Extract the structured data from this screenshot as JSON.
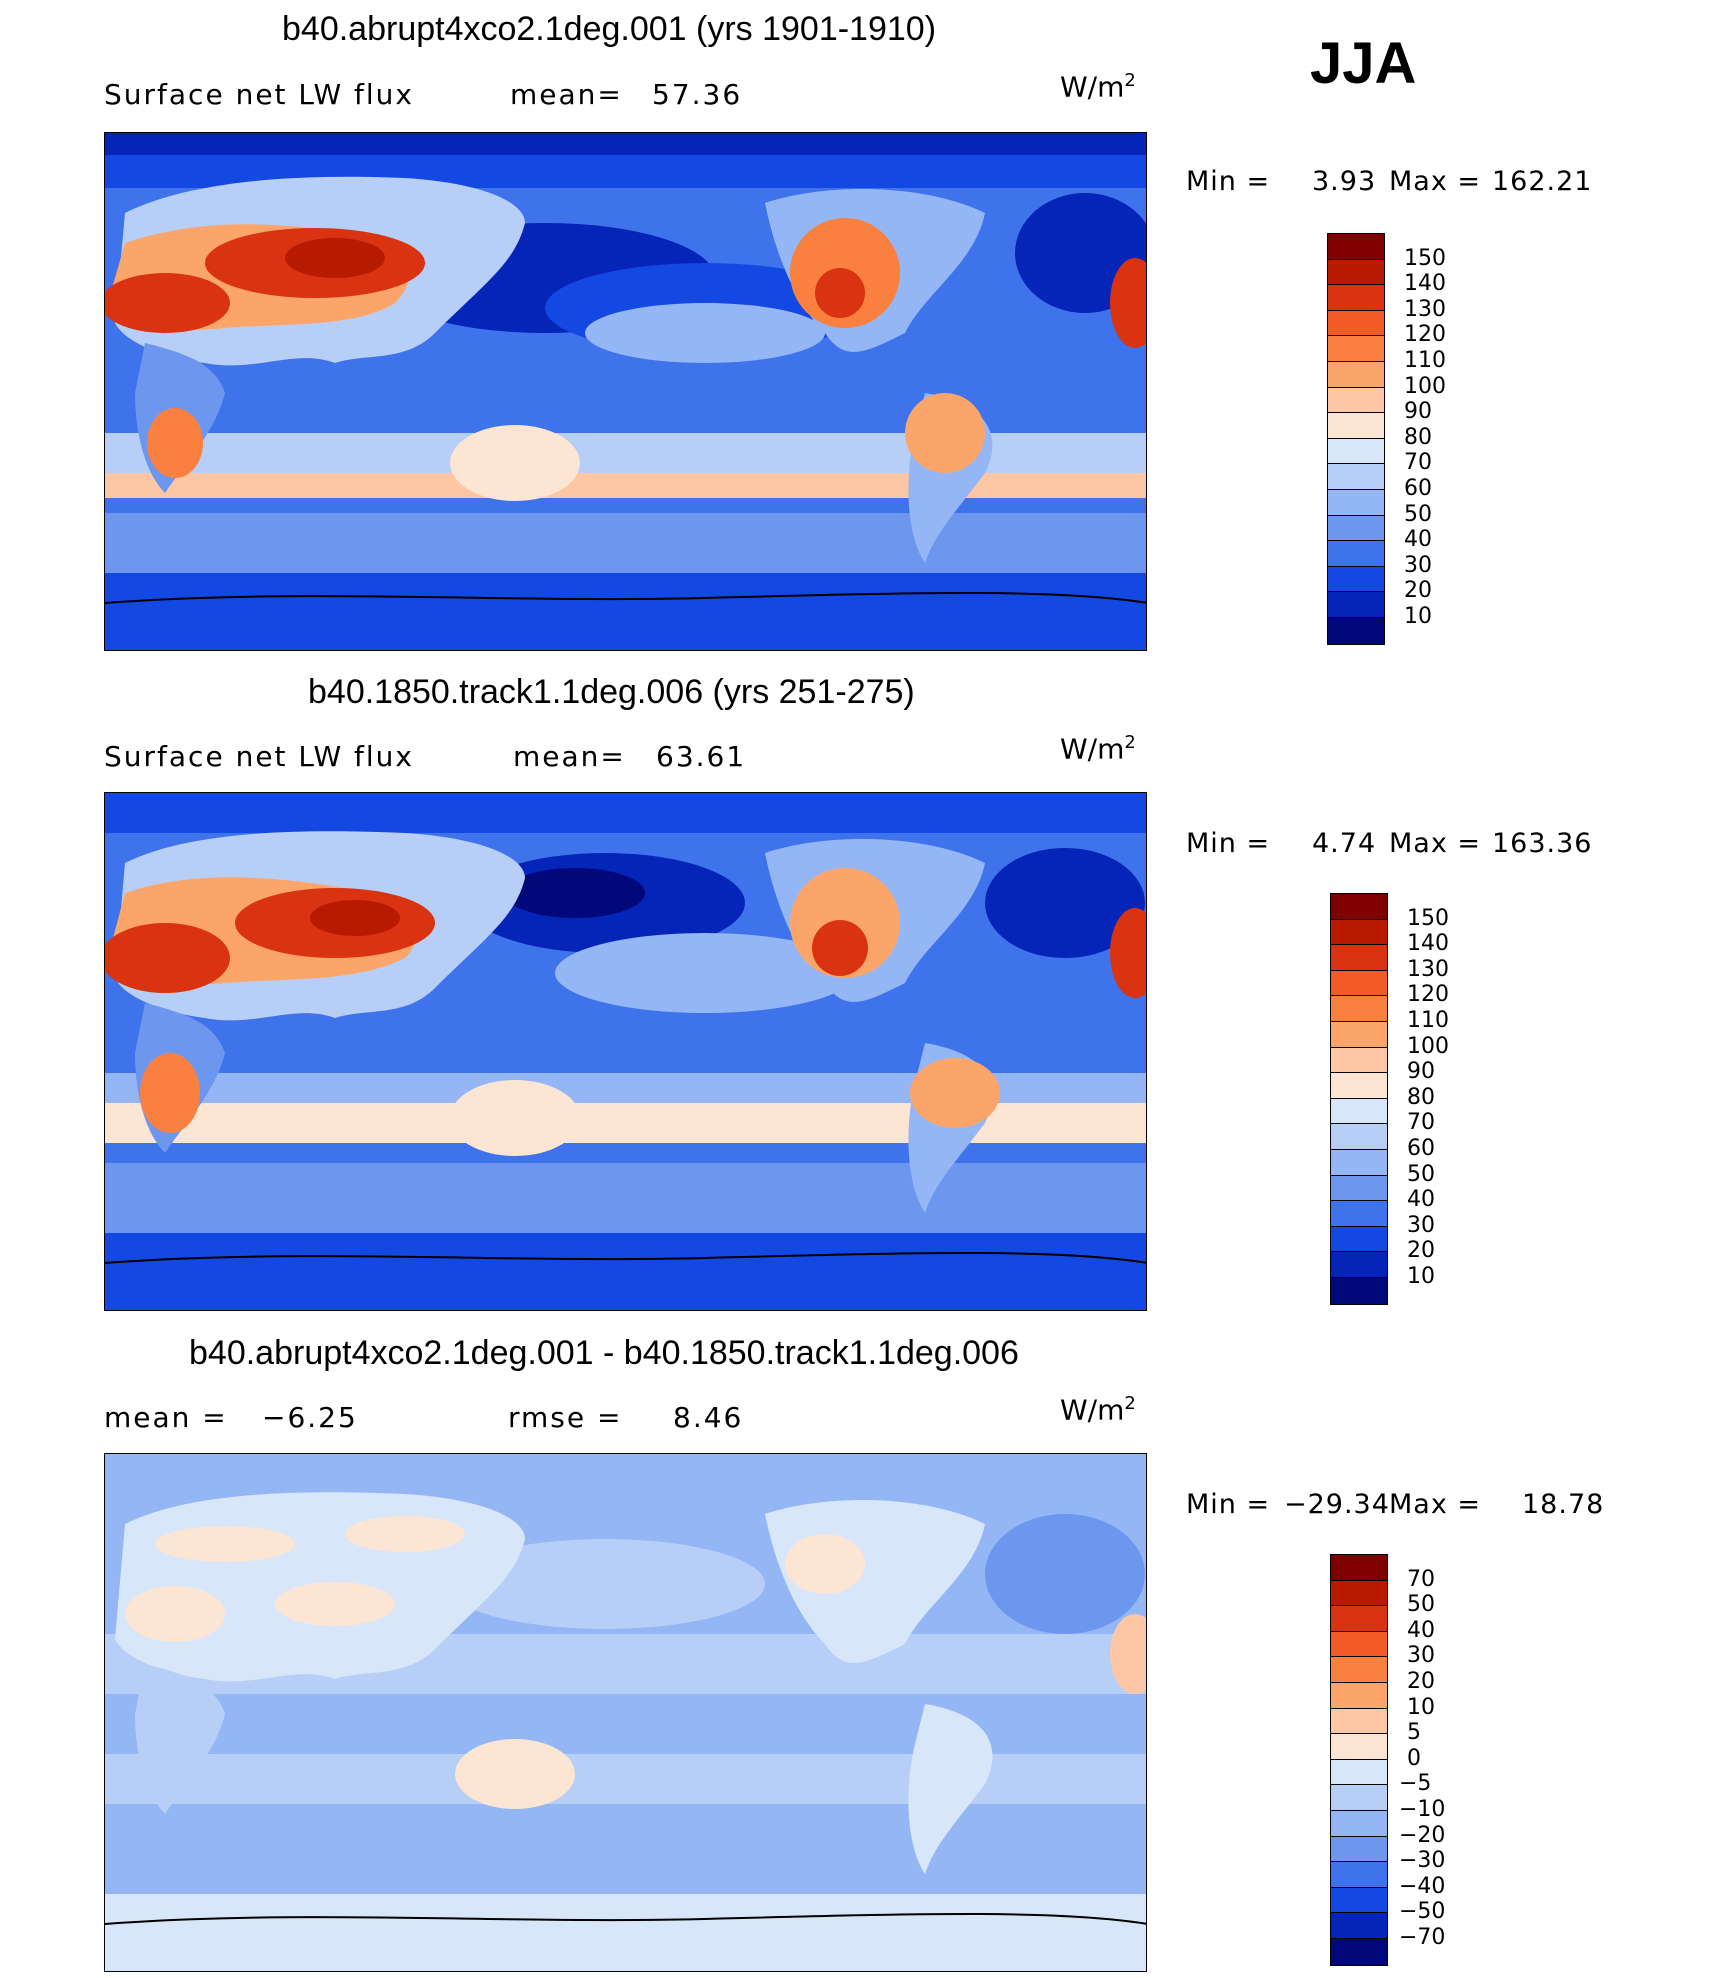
{
  "season": "JJA",
  "panels": [
    {
      "title": "b40.abrupt4xco2.1deg.001 (yrs 1901-1910)",
      "left_label": "Surface net LW flux",
      "stat_label": "mean=",
      "stat_value": "57.36",
      "units": "W/m",
      "units_sup": "2",
      "min_label": "Min =",
      "min_value": "3.93",
      "max_label": "Max =",
      "max_value": "162.21",
      "colorbar_labels": [
        "150",
        "140",
        "130",
        "120",
        "110",
        "100",
        "90",
        "80",
        "70",
        "60",
        "50",
        "40",
        "30",
        "20",
        "10"
      ],
      "colors": [
        "#800000",
        "#b81a00",
        "#d93312",
        "#f25a26",
        "#f9803f",
        "#fca56b",
        "#fdc6a4",
        "#fde5d3",
        "#d8e6fa",
        "#b7cff7",
        "#94b6f4",
        "#6d97ef",
        "#3f73ec",
        "#1448e2",
        "#0524b8",
        "#00087a"
      ]
    },
    {
      "title": "b40.1850.track1.1deg.006 (yrs 251-275)",
      "left_label": "Surface net LW flux",
      "stat_label": "mean=",
      "stat_value": "63.61",
      "units": "W/m",
      "units_sup": "2",
      "min_label": "Min =",
      "min_value": "4.74",
      "max_label": "Max =",
      "max_value": "163.36",
      "colorbar_labels": [
        "150",
        "140",
        "130",
        "120",
        "110",
        "100",
        "90",
        "80",
        "70",
        "60",
        "50",
        "40",
        "30",
        "20",
        "10"
      ],
      "colors": [
        "#800000",
        "#b81a00",
        "#d93312",
        "#f25a26",
        "#f9803f",
        "#fca56b",
        "#fdc6a4",
        "#fde5d3",
        "#d8e6fa",
        "#b7cff7",
        "#94b6f4",
        "#6d97ef",
        "#3f73ec",
        "#1448e2",
        "#0524b8",
        "#00087a"
      ]
    },
    {
      "title": "b40.abrupt4xco2.1deg.001 - b40.1850.track1.1deg.006",
      "left_label": "mean =",
      "left_value": "−6.25",
      "stat_label": "rmse =",
      "stat_value": "8.46",
      "units": "W/m",
      "units_sup": "2",
      "min_label": "Min =",
      "min_value": "−29.34",
      "max_label": "Max =",
      "max_value": "18.78",
      "colorbar_labels": [
        "70",
        "50",
        "40",
        "30",
        "20",
        "10",
        "5",
        "0",
        "−5",
        "−10",
        "−20",
        "−30",
        "−40",
        "−50",
        "−70"
      ],
      "colors": [
        "#800000",
        "#b81a00",
        "#d93312",
        "#f25a26",
        "#f9803f",
        "#fca56b",
        "#fdc6a4",
        "#fde5d3",
        "#d8e6fa",
        "#b7cff7",
        "#94b6f4",
        "#6d97ef",
        "#3f73ec",
        "#1448e2",
        "#0524b8",
        "#00087a"
      ]
    }
  ]
}
